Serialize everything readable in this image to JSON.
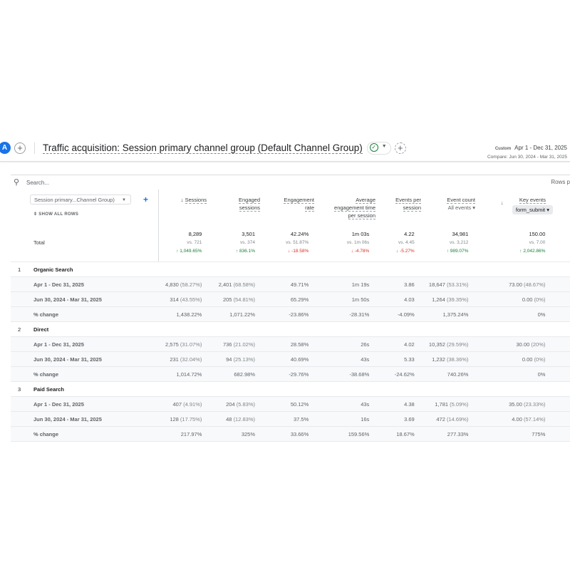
{
  "header": {
    "avatar": "A",
    "title": "Traffic acquisition: Session primary channel group (Default Channel Group)",
    "custom_label": "Custom",
    "date_range": "Apr 1 - Dec 31, 2025",
    "compare": "Compare: Jun 30, 2024 - Mar 31, 2025"
  },
  "search": {
    "placeholder": "Search...",
    "rows_label": "Rows p"
  },
  "dimension": {
    "selected": "Session primary...Channel Group)",
    "show_all": "SHOW ALL ROWS"
  },
  "columns": [
    {
      "l1": "Sessions",
      "l2": "",
      "l3": ""
    },
    {
      "l1": "Engaged",
      "l2": "sessions",
      "l3": ""
    },
    {
      "l1": "Engagement",
      "l2": "rate",
      "l3": ""
    },
    {
      "l1": "Average",
      "l2": "engagement time",
      "l3": "per session"
    },
    {
      "l1": "Events per",
      "l2": "session",
      "l3": ""
    },
    {
      "l1": "Event count",
      "l2": "All events",
      "l3": ""
    },
    {
      "l1": "Key events",
      "l2": "form_submit",
      "l3": ""
    }
  ],
  "total": {
    "label": "Total",
    "cells": [
      {
        "v": "8,289",
        "vs": "vs. 721",
        "chg": "↑ 1,049.65%",
        "dir": "up"
      },
      {
        "v": "3,501",
        "vs": "vs. 374",
        "chg": "↑ 836.1%",
        "dir": "up"
      },
      {
        "v": "42.24%",
        "vs": "vs. 51.87%",
        "chg": "↓ -18.58%",
        "dir": "dn"
      },
      {
        "v": "1m 03s",
        "vs": "vs. 1m 06s",
        "chg": "↓ -4.78%",
        "dir": "dn"
      },
      {
        "v": "4.22",
        "vs": "vs. 4.45",
        "chg": "↓ -5.27%",
        "dir": "dn"
      },
      {
        "v": "34,981",
        "vs": "vs. 3,212",
        "chg": "↑ 989.07%",
        "dir": "up"
      },
      {
        "v": "150.00",
        "vs": "vs. 7.00",
        "chg": "↑ 2,042.86%",
        "dir": "up"
      }
    ]
  },
  "groups": [
    {
      "index": "1",
      "name": "Organic Search",
      "rows": [
        {
          "label": "Apr 1 - Dec 31, 2025",
          "cells": [
            [
              "4,830",
              "(58.27%)"
            ],
            [
              "2,401",
              "(68.58%)"
            ],
            [
              "49.71%",
              ""
            ],
            [
              "1m 19s",
              ""
            ],
            [
              "3.86",
              ""
            ],
            [
              "18,647",
              "(53.31%)"
            ],
            [
              "73.00",
              "(48.67%)"
            ]
          ]
        },
        {
          "label": "Jun 30, 2024 - Mar 31, 2025",
          "cells": [
            [
              "314",
              "(43.55%)"
            ],
            [
              "205",
              "(54.81%)"
            ],
            [
              "65.29%",
              ""
            ],
            [
              "1m 50s",
              ""
            ],
            [
              "4.03",
              ""
            ],
            [
              "1,264",
              "(39.35%)"
            ],
            [
              "0.00",
              "(0%)"
            ]
          ]
        },
        {
          "label": "% change",
          "cells": [
            [
              "1,438.22%",
              ""
            ],
            [
              "1,071.22%",
              ""
            ],
            [
              "-23.86%",
              ""
            ],
            [
              "-28.31%",
              ""
            ],
            [
              "-4.09%",
              ""
            ],
            [
              "1,375.24%",
              ""
            ],
            [
              "0%",
              ""
            ]
          ]
        }
      ]
    },
    {
      "index": "2",
      "name": "Direct",
      "rows": [
        {
          "label": "Apr 1 - Dec 31, 2025",
          "cells": [
            [
              "2,575",
              "(31.07%)"
            ],
            [
              "736",
              "(21.02%)"
            ],
            [
              "28.58%",
              ""
            ],
            [
              "26s",
              ""
            ],
            [
              "4.02",
              ""
            ],
            [
              "10,352",
              "(29.59%)"
            ],
            [
              "30.00",
              "(20%)"
            ]
          ]
        },
        {
          "label": "Jun 30, 2024 - Mar 31, 2025",
          "cells": [
            [
              "231",
              "(32.04%)"
            ],
            [
              "94",
              "(25.13%)"
            ],
            [
              "40.69%",
              ""
            ],
            [
              "43s",
              ""
            ],
            [
              "5.33",
              ""
            ],
            [
              "1,232",
              "(38.36%)"
            ],
            [
              "0.00",
              "(0%)"
            ]
          ]
        },
        {
          "label": "% change",
          "cells": [
            [
              "1,014.72%",
              ""
            ],
            [
              "682.98%",
              ""
            ],
            [
              "-29.76%",
              ""
            ],
            [
              "-38.68%",
              ""
            ],
            [
              "-24.62%",
              ""
            ],
            [
              "740.26%",
              ""
            ],
            [
              "0%",
              ""
            ]
          ]
        }
      ]
    },
    {
      "index": "3",
      "name": "Paid Search",
      "rows": [
        {
          "label": "Apr 1 - Dec 31, 2025",
          "cells": [
            [
              "407",
              "(4.91%)"
            ],
            [
              "204",
              "(5.83%)"
            ],
            [
              "50.12%",
              ""
            ],
            [
              "43s",
              ""
            ],
            [
              "4.38",
              ""
            ],
            [
              "1,781",
              "(5.09%)"
            ],
            [
              "35.00",
              "(23.33%)"
            ]
          ]
        },
        {
          "label": "Jun 30, 2024 - Mar 31, 2025",
          "cells": [
            [
              "128",
              "(17.75%)"
            ],
            [
              "48",
              "(12.83%)"
            ],
            [
              "37.5%",
              ""
            ],
            [
              "16s",
              ""
            ],
            [
              "3.69",
              ""
            ],
            [
              "472",
              "(14.69%)"
            ],
            [
              "4.00",
              "(57.14%)"
            ]
          ]
        },
        {
          "label": "% change",
          "cells": [
            [
              "217.97%",
              ""
            ],
            [
              "325%",
              ""
            ],
            [
              "33.66%",
              ""
            ],
            [
              "159.56%",
              ""
            ],
            [
              "18.67%",
              ""
            ],
            [
              "277.33%",
              ""
            ],
            [
              "775%",
              ""
            ]
          ]
        }
      ]
    }
  ],
  "colors": {
    "accent": "#1a73e8",
    "positive": "#188038",
    "negative": "#d93025"
  }
}
